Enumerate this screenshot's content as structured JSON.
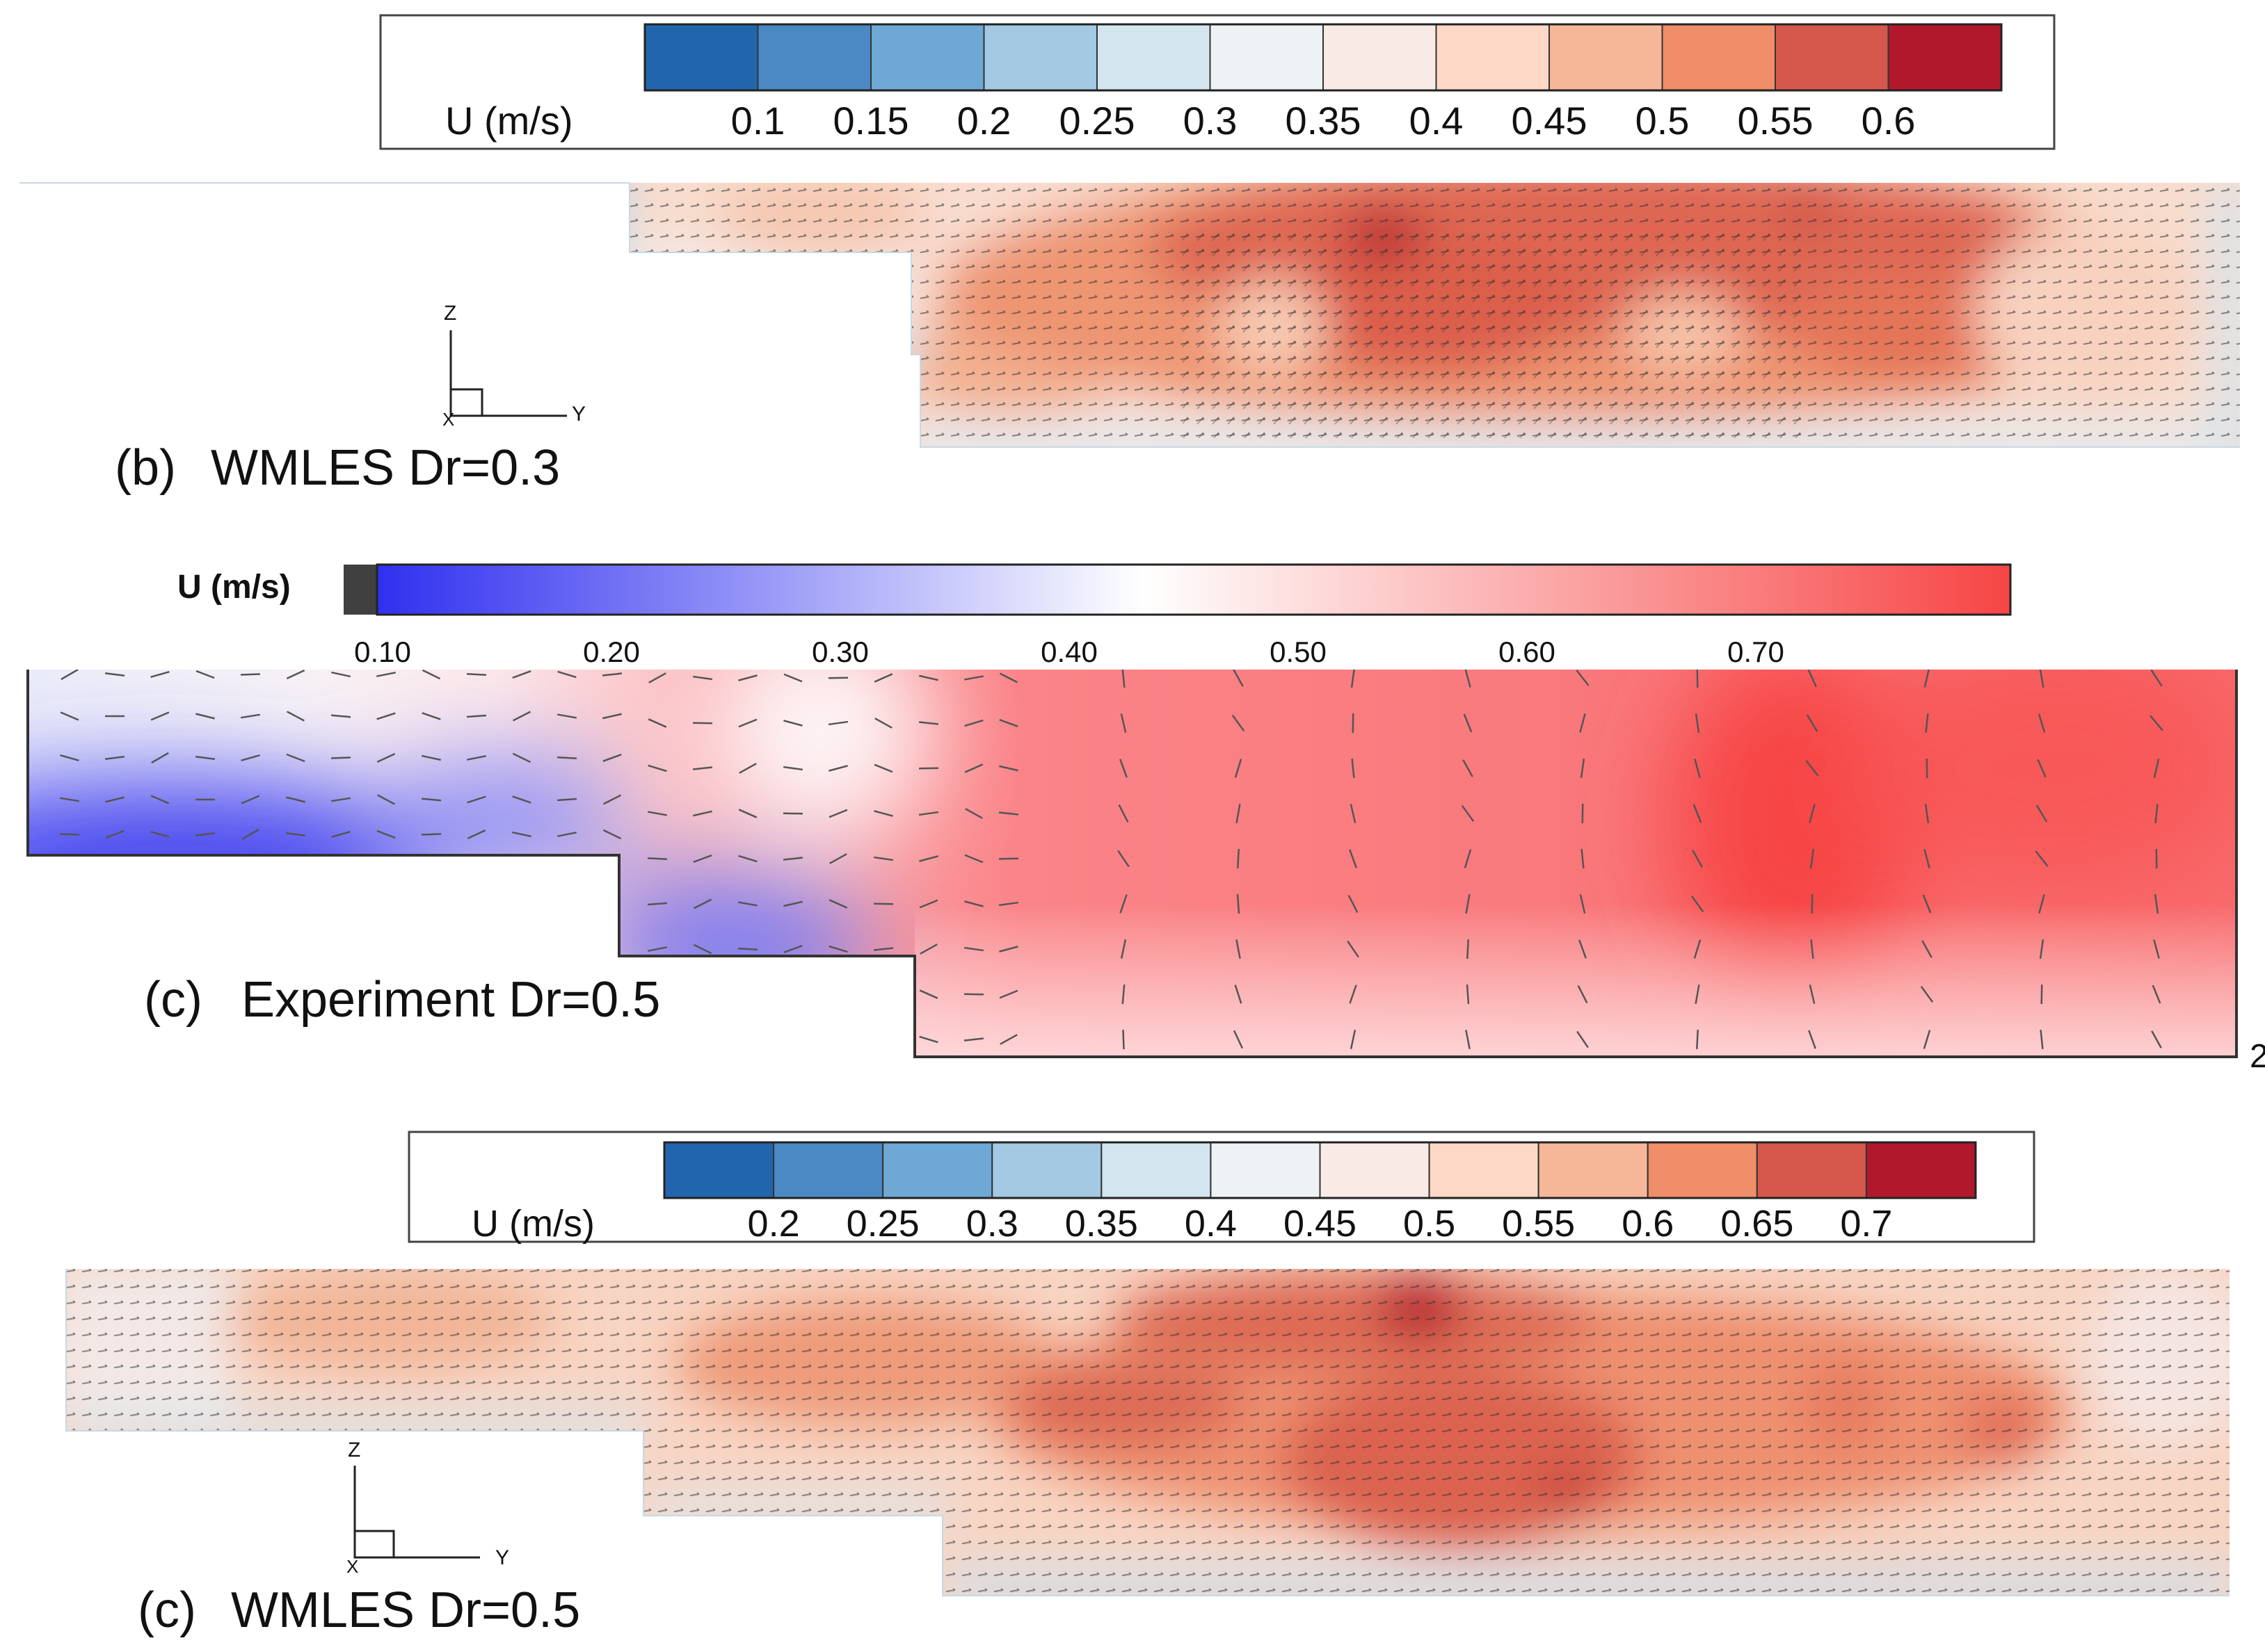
{
  "panels": {
    "b": {
      "caption_letter": "(b)",
      "caption_text": "WMLES Dr=0.3",
      "legend_title": "U (m/s)",
      "legend_ticks": [
        "0.1",
        "0.15",
        "0.2",
        "0.25",
        "0.3",
        "0.35",
        "0.4",
        "0.45",
        "0.5",
        "0.55",
        "0.6"
      ],
      "legend_colors": [
        "#2166ac",
        "#4a89c4",
        "#6ea9d6",
        "#a3c9e3",
        "#d3e5ef",
        "#edf2f5",
        "#f8ebe6",
        "#fdd8c6",
        "#f6b799",
        "#ef8e69",
        "#d6574b",
        "#b2182b"
      ],
      "axes": {
        "vertical": "Z",
        "horizontal": "Y",
        "origin": "X"
      }
    },
    "exp": {
      "caption_letter": "(c)",
      "caption_text": "Experiment Dr=0.5",
      "legend_title": "U (m/s)",
      "legend_ticks": [
        "0.10",
        "0.20",
        "0.30",
        "0.40",
        "0.50",
        "0.60",
        "0.70"
      ],
      "legend_colors": {
        "low": "#3030f0",
        "mid": "#ffffff",
        "high": "#f74545",
        "cap": "#404040"
      }
    },
    "c": {
      "caption_letter": "(c)",
      "caption_text": "WMLES Dr=0.5",
      "legend_title": "U (m/s)",
      "legend_ticks": [
        "0.2",
        "0.25",
        "0.3",
        "0.35",
        "0.4",
        "0.45",
        "0.5",
        "0.55",
        "0.6",
        "0.65",
        "0.7"
      ],
      "legend_colors": [
        "#2166ac",
        "#4a89c4",
        "#6ea9d6",
        "#a3c9e3",
        "#d3e5ef",
        "#edf2f5",
        "#f8ebe6",
        "#fdd8c6",
        "#f6b799",
        "#ef8e69",
        "#d6574b",
        "#b2182b"
      ],
      "axes": {
        "vertical": "Z",
        "horizontal": "Y",
        "origin": "X"
      }
    }
  },
  "edge_mark": "2"
}
